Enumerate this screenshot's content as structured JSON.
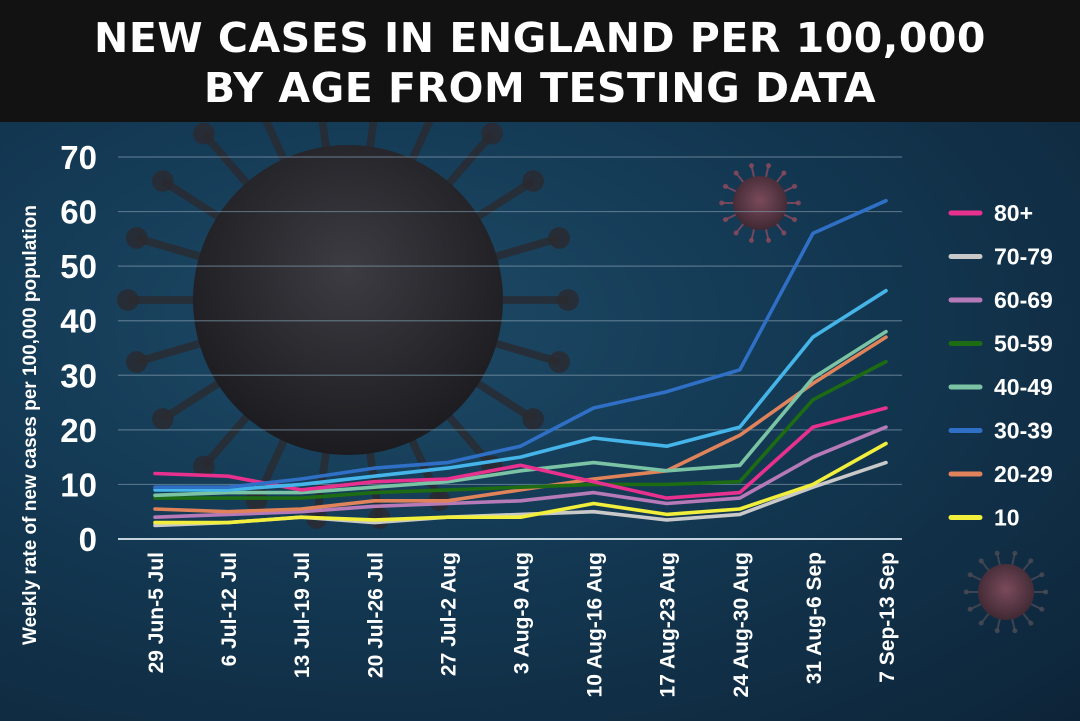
{
  "header": {
    "title_line1": "NEW CASES IN ENGLAND PER 100,000",
    "title_line2": "BY AGE FROM TESTING DATA"
  },
  "chart_data": {
    "type": "line",
    "title": "NEW CASES IN ENGLAND PER 100,000 BY AGE FROM TESTING DATA",
    "xlabel": "",
    "ylabel": "Weekly rate of new cases per 100,000 population",
    "ylim": [
      0,
      70
    ],
    "yticks": [
      0,
      10,
      20,
      30,
      40,
      50,
      60,
      70
    ],
    "grid": true,
    "legend_position": "right",
    "categories": [
      "29 Jun-5 Jul",
      "6 Jul-12 Jul",
      "13 Jul-19 Jul",
      "20 Jul-26 Jul",
      "27 Jul-2 Aug",
      "3 Aug-9 Aug",
      "10 Aug-16 Aug",
      "17 Aug-23 Aug",
      "24 Aug-30 Aug",
      "31 Aug-6 Sep",
      "7 Sep-13 Sep"
    ],
    "series": [
      {
        "name": "80+",
        "color": "#e8318e",
        "values": [
          12,
          11.5,
          9,
          10.5,
          11,
          13.5,
          10.5,
          7.5,
          8.5,
          20.5,
          24
        ]
      },
      {
        "name": "70-79",
        "color": "#c9c9c9",
        "values": [
          2.5,
          3,
          4,
          3,
          4,
          4.5,
          5,
          3.5,
          4.5,
          9.5,
          14
        ]
      },
      {
        "name": "60-69",
        "color": "#b67ab8",
        "values": [
          4,
          4.5,
          5,
          6,
          6.5,
          7,
          8.5,
          6.5,
          7.5,
          15,
          20.5
        ]
      },
      {
        "name": "50-59",
        "color": "#1d6b12",
        "values": [
          7.5,
          7.5,
          7.5,
          8.5,
          9,
          9.5,
          10,
          10,
          10.5,
          25.5,
          32.5
        ]
      },
      {
        "name": "40-49",
        "color": "#7ac3a4",
        "values": [
          8,
          8.5,
          8.5,
          9.5,
          10.5,
          12.5,
          14,
          12.5,
          13.5,
          29.5,
          38
        ]
      },
      {
        "name": "30-39",
        "color": "#2f6fc6",
        "values": [
          9.5,
          9.5,
          11,
          13,
          14,
          17,
          24,
          27,
          31,
          56,
          62
        ]
      },
      {
        "name": "20-29",
        "color": "#e0835a",
        "values": [
          5.5,
          5,
          5.5,
          7,
          7,
          9,
          11,
          12.5,
          19,
          28.5,
          37
        ]
      },
      {
        "name": "10",
        "color": "#f2ee3c",
        "values": [
          3,
          3,
          4,
          3.5,
          4,
          4,
          6.5,
          4.5,
          5.5,
          10,
          17.5
        ]
      },
      {
        "name": "",
        "color": "#45b4e8",
        "values": [
          9,
          9,
          10,
          11.5,
          13,
          15,
          18.5,
          17,
          20.5,
          37,
          45.5
        ]
      }
    ]
  }
}
